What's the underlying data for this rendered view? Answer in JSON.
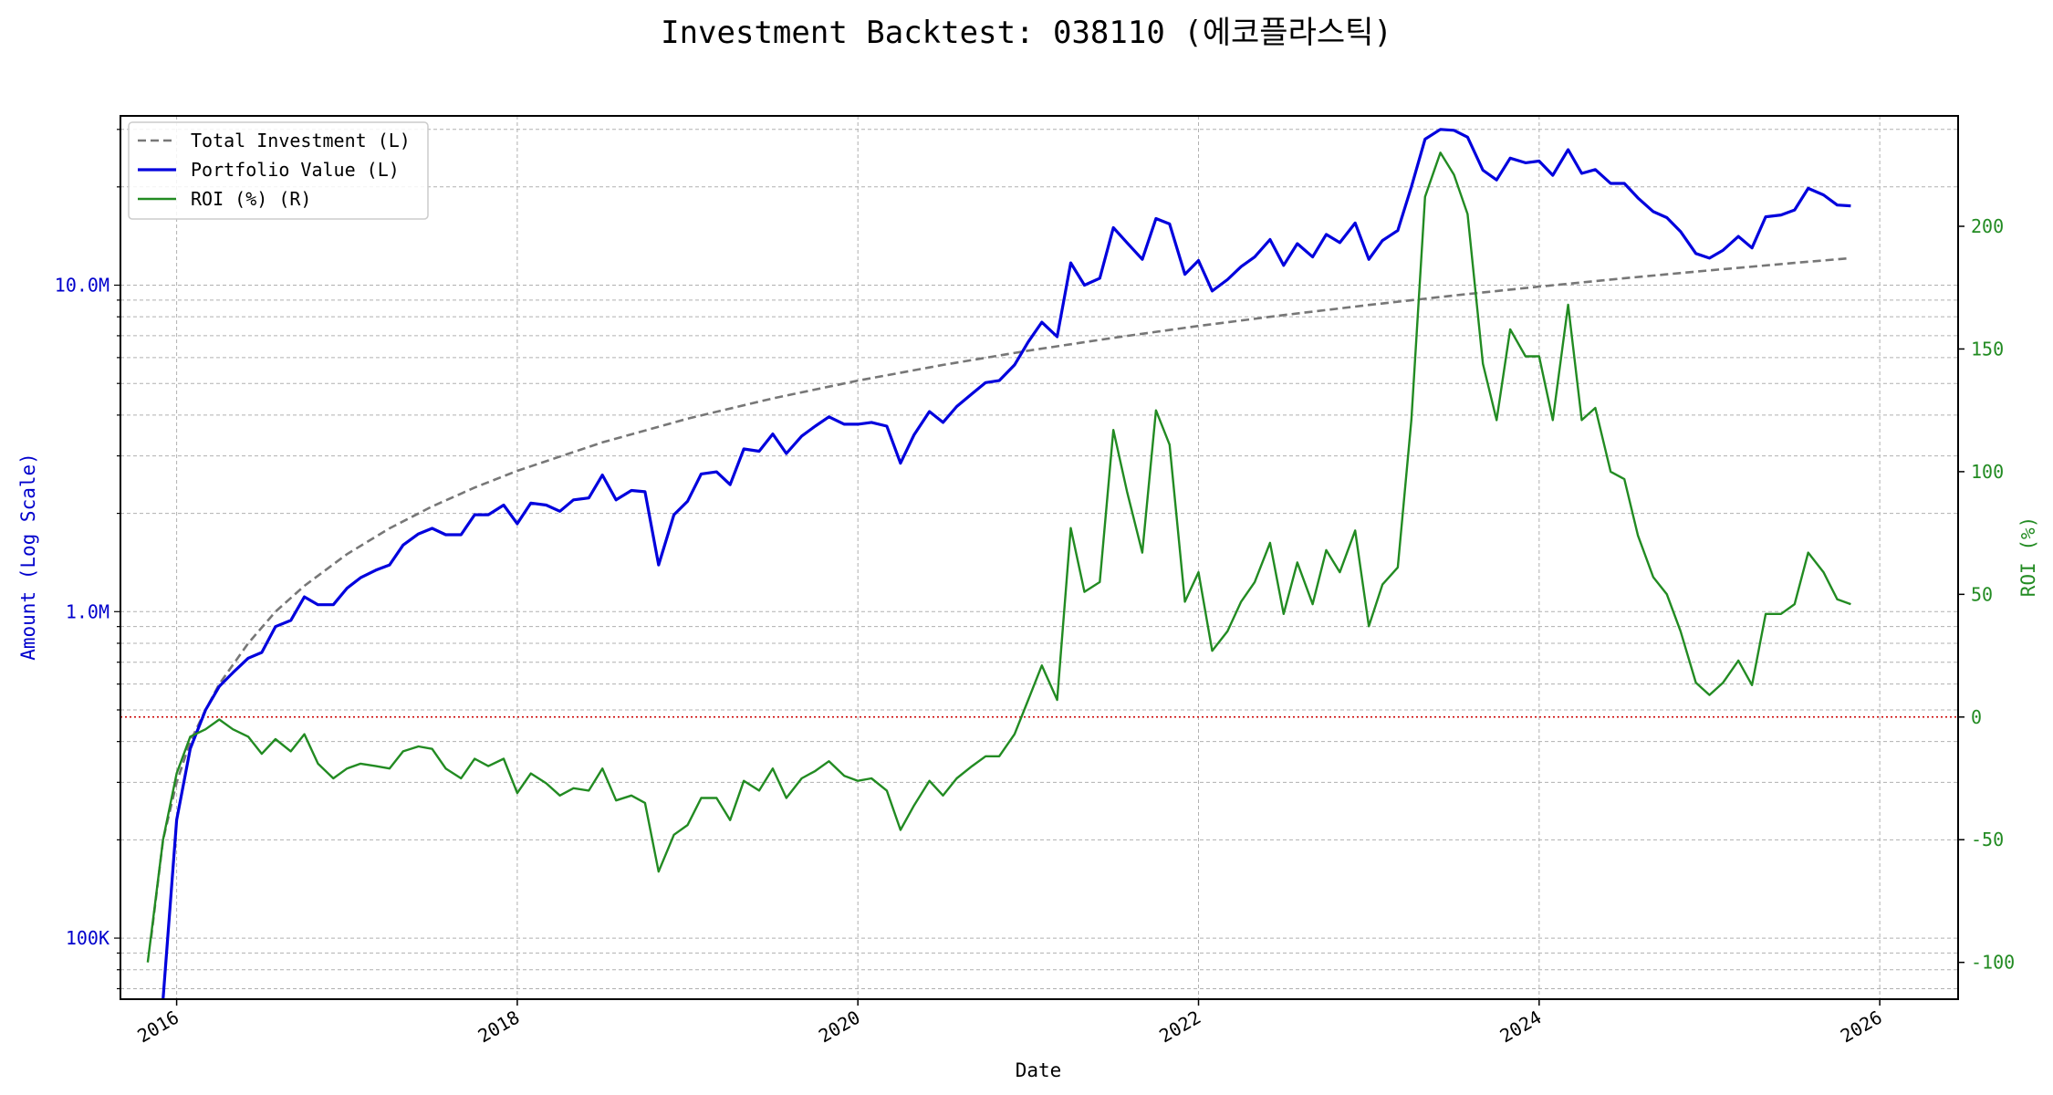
{
  "chart_data": {
    "type": "line",
    "title": "Investment Backtest: 038110 (에코플라스틱)",
    "xlabel": "Date",
    "ylabel_left": "Amount (Log Scale)",
    "ylabel_right": "ROI (%)",
    "left_axis": {
      "scale": "log",
      "ylim": [
        65000,
        33000000
      ],
      "ticks": [
        {
          "value": 100000,
          "label": "100K"
        },
        {
          "value": 1000000,
          "label": "1.0M"
        },
        {
          "value": 10000000,
          "label": "10.0M"
        }
      ],
      "color": "#0000cc"
    },
    "right_axis": {
      "scale": "linear",
      "ylim": [
        -115,
        245
      ],
      "ticks": [
        -100,
        -50,
        0,
        50,
        100,
        150,
        200
      ],
      "color": "#228b22"
    },
    "x_axis": {
      "xlim": [
        2015.67,
        2026.46
      ],
      "ticks": [
        {
          "value": 2016,
          "label": "2016"
        },
        {
          "value": 2018,
          "label": "2018"
        },
        {
          "value": 2020,
          "label": "2020"
        },
        {
          "value": 2022,
          "label": "2022"
        },
        {
          "value": 2024,
          "label": "2024"
        },
        {
          "value": 2026,
          "label": "2026"
        }
      ]
    },
    "grid": true,
    "legend_position": "top-left",
    "zero_line": {
      "value": 0,
      "axis": "right",
      "color": "#cc0000",
      "style": "dotted"
    },
    "series": [
      {
        "name": "Total Investment (L)",
        "axis": "left",
        "color": "#777777",
        "style": "dashed",
        "x": [
          2015.85,
          2015.92,
          2016.0,
          2016.08,
          2016.17,
          2016.25,
          2016.42,
          2016.58,
          2016.75,
          2017.0,
          2017.25,
          2017.5,
          2017.75,
          2018.0,
          2018.5,
          2019.0,
          2019.5,
          2020.0,
          2020.5,
          2021.0,
          2021.5,
          2022.0,
          2022.5,
          2023.0,
          2023.5,
          2024.0,
          2024.5,
          2025.0,
          2025.5,
          2025.83
        ],
        "y": [
          100000,
          200000,
          300000,
          400000,
          500000,
          600000,
          800000,
          1000000,
          1200000,
          1500000,
          1800000,
          2100000,
          2400000,
          2700000,
          3300000,
          3900000,
          4500000,
          5100000,
          5700000,
          6300000,
          6900000,
          7500000,
          8100000,
          8700000,
          9300000,
          9900000,
          10500000,
          11100000,
          11700000,
          12100000
        ]
      },
      {
        "name": "Portfolio Value (L)",
        "axis": "left",
        "color": "#0000dd",
        "style": "solid",
        "x": [
          2015.92,
          2016.0,
          2016.08,
          2016.17,
          2016.25,
          2016.33,
          2016.42,
          2016.5,
          2016.58,
          2016.67,
          2016.75,
          2016.83,
          2016.92,
          2017.0,
          2017.08,
          2017.17,
          2017.25,
          2017.33,
          2017.42,
          2017.5,
          2017.58,
          2017.67,
          2017.75,
          2017.83,
          2017.92,
          2018.0,
          2018.08,
          2018.17,
          2018.25,
          2018.33,
          2018.42,
          2018.5,
          2018.58,
          2018.67,
          2018.75,
          2018.83,
          2018.92,
          2019.0,
          2019.08,
          2019.17,
          2019.25,
          2019.33,
          2019.42,
          2019.5,
          2019.58,
          2019.67,
          2019.75,
          2019.83,
          2019.92,
          2020.0,
          2020.08,
          2020.17,
          2020.25,
          2020.33,
          2020.42,
          2020.5,
          2020.58,
          2020.67,
          2020.75,
          2020.83,
          2020.92,
          2021.0,
          2021.08,
          2021.17,
          2021.25,
          2021.33,
          2021.42,
          2021.5,
          2021.58,
          2021.67,
          2021.75,
          2021.83,
          2021.92,
          2022.0,
          2022.08,
          2022.17,
          2022.25,
          2022.33,
          2022.42,
          2022.5,
          2022.58,
          2022.67,
          2022.75,
          2022.83,
          2022.92,
          2023.0,
          2023.08,
          2023.17,
          2023.25,
          2023.33,
          2023.42,
          2023.5,
          2023.58,
          2023.67,
          2023.75,
          2023.83,
          2023.92,
          2024.0,
          2024.08,
          2024.17,
          2024.25,
          2024.33,
          2024.42,
          2024.5,
          2024.58,
          2024.67,
          2024.75,
          2024.83,
          2024.92,
          2025.0,
          2025.08,
          2025.17,
          2025.25,
          2025.33,
          2025.42,
          2025.5,
          2025.58,
          2025.67,
          2025.75,
          2025.83
        ],
        "y": [
          60000,
          230000,
          380000,
          500000,
          590000,
          650000,
          720000,
          750000,
          900000,
          940000,
          1110000,
          1050000,
          1050000,
          1180000,
          1270000,
          1340000,
          1390000,
          1600000,
          1730000,
          1800000,
          1720000,
          1720000,
          1980000,
          1980000,
          2120000,
          1860000,
          2150000,
          2120000,
          2030000,
          2200000,
          2230000,
          2620000,
          2200000,
          2350000,
          2330000,
          1390000,
          1980000,
          2180000,
          2640000,
          2680000,
          2450000,
          3150000,
          3100000,
          3500000,
          3050000,
          3450000,
          3700000,
          3950000,
          3750000,
          3750000,
          3800000,
          3700000,
          2850000,
          3480000,
          4100000,
          3800000,
          4250000,
          4650000,
          5030000,
          5100000,
          5700000,
          6700000,
          7700000,
          6950000,
          11700000,
          10000000,
          10500000,
          15000000,
          13500000,
          12000000,
          16000000,
          15400000,
          10800000,
          11900000,
          9600000,
          10400000,
          11400000,
          12200000,
          13800000,
          11500000,
          13400000,
          12200000,
          14300000,
          13500000,
          15500000,
          12000000,
          13700000,
          14700000,
          20000000,
          28000000,
          30000000,
          29800000,
          28400000,
          22500000,
          21000000,
          24500000,
          23700000,
          24000000,
          21700000,
          26000000,
          22000000,
          22600000,
          20500000,
          20500000,
          18500000,
          16800000,
          16100000,
          14600000,
          12500000,
          12100000,
          12800000,
          14100000,
          13000000,
          16200000,
          16400000,
          17000000,
          19800000,
          18900000,
          17600000,
          17500000
        ]
      },
      {
        "name": "ROI (%) (R)",
        "axis": "right",
        "color": "#228b22",
        "style": "solid",
        "x": [
          2015.83,
          2015.92,
          2016.0,
          2016.08,
          2016.17,
          2016.25,
          2016.33,
          2016.42,
          2016.5,
          2016.58,
          2016.67,
          2016.75,
          2016.83,
          2016.92,
          2017.0,
          2017.08,
          2017.17,
          2017.25,
          2017.33,
          2017.42,
          2017.5,
          2017.58,
          2017.67,
          2017.75,
          2017.83,
          2017.92,
          2018.0,
          2018.08,
          2018.17,
          2018.25,
          2018.33,
          2018.42,
          2018.5,
          2018.58,
          2018.67,
          2018.75,
          2018.83,
          2018.92,
          2019.0,
          2019.08,
          2019.17,
          2019.25,
          2019.33,
          2019.42,
          2019.5,
          2019.58,
          2019.67,
          2019.75,
          2019.83,
          2019.92,
          2020.0,
          2020.08,
          2020.17,
          2020.25,
          2020.33,
          2020.42,
          2020.5,
          2020.58,
          2020.67,
          2020.75,
          2020.83,
          2020.92,
          2021.0,
          2021.08,
          2021.17,
          2021.25,
          2021.33,
          2021.42,
          2021.5,
          2021.58,
          2021.67,
          2021.75,
          2021.83,
          2021.92,
          2022.0,
          2022.08,
          2022.17,
          2022.25,
          2022.33,
          2022.42,
          2022.5,
          2022.58,
          2022.67,
          2022.75,
          2022.83,
          2022.92,
          2023.0,
          2023.08,
          2023.17,
          2023.25,
          2023.33,
          2023.42,
          2023.5,
          2023.58,
          2023.67,
          2023.75,
          2023.83,
          2023.92,
          2024.0,
          2024.08,
          2024.17,
          2024.25,
          2024.33,
          2024.42,
          2024.5,
          2024.58,
          2024.67,
          2024.75,
          2024.83,
          2024.92,
          2025.0,
          2025.08,
          2025.17,
          2025.25,
          2025.33,
          2025.42,
          2025.5,
          2025.58,
          2025.67,
          2025.75,
          2025.83
        ],
        "y": [
          -100,
          -50,
          -23,
          -8,
          -5,
          -1,
          -5,
          -8,
          -15,
          -9,
          -14,
          -7,
          -19,
          -25,
          -21,
          -19,
          -20,
          -21,
          -14,
          -12,
          -13,
          -21,
          -25,
          -17,
          -20,
          -17,
          -31,
          -23,
          -27,
          -32,
          -29,
          -30,
          -21,
          -34,
          -32,
          -35,
          -63,
          -48,
          -44,
          -33,
          -33,
          -42,
          -26,
          -30,
          -21,
          -33,
          -25,
          -22,
          -18,
          -24,
          -26,
          -25,
          -30,
          -46,
          -36,
          -26,
          -32,
          -25,
          -20,
          -16,
          -16,
          -7,
          7,
          21,
          7,
          77,
          51,
          55,
          117,
          92,
          67,
          125,
          111,
          47,
          59,
          27,
          35,
          47,
          55,
          71,
          42,
          63,
          46,
          68,
          59,
          76,
          37,
          54,
          61,
          121,
          212,
          230,
          221,
          205,
          144,
          121,
          158,
          147,
          147,
          121,
          168,
          121,
          126,
          100,
          97,
          74,
          57,
          50,
          35,
          14,
          9,
          14,
          23,
          13,
          42,
          42,
          46,
          67,
          59,
          48,
          46
        ]
      }
    ]
  }
}
